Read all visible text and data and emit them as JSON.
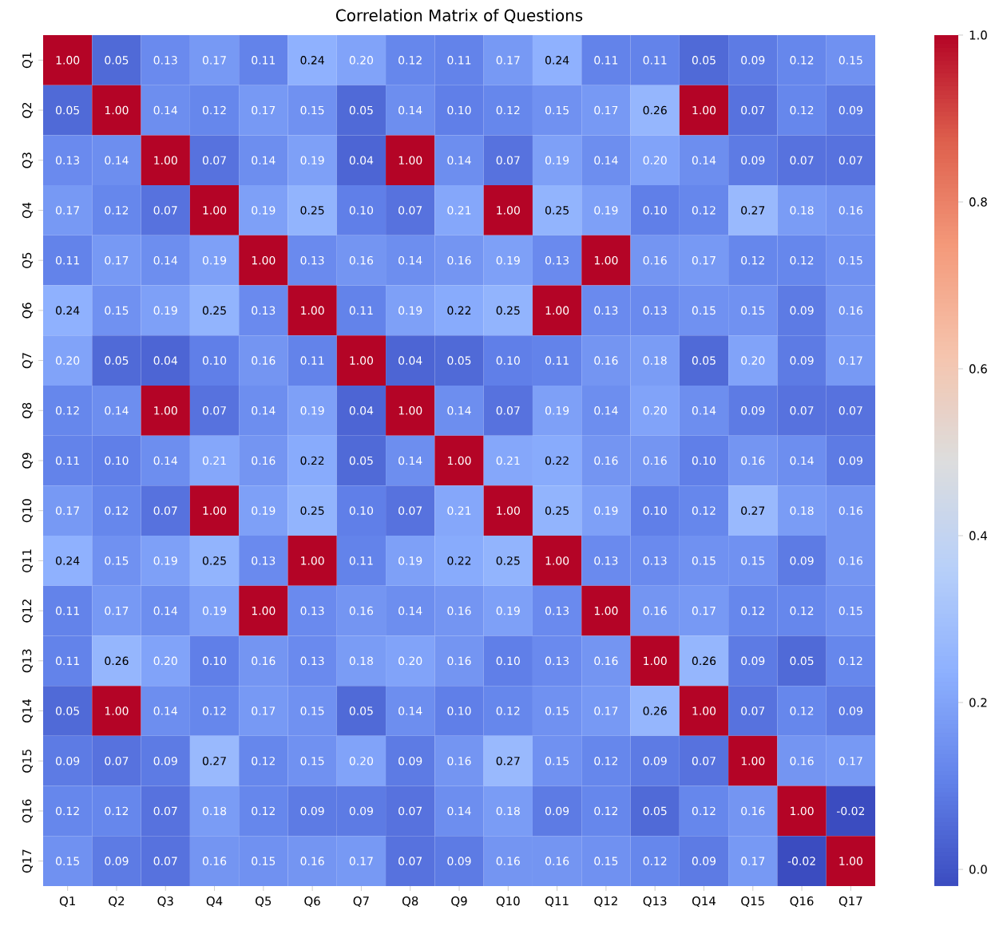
{
  "chart_data": {
    "type": "heatmap",
    "title": "Correlation Matrix of Questions",
    "categories": [
      "Q1",
      "Q2",
      "Q3",
      "Q4",
      "Q5",
      "Q6",
      "Q7",
      "Q8",
      "Q9",
      "Q10",
      "Q11",
      "Q12",
      "Q13",
      "Q14",
      "Q15",
      "Q16",
      "Q17"
    ],
    "y_categories": [
      "Q1",
      "Q2",
      "Q3",
      "Q4",
      "Q5",
      "Q6",
      "Q7",
      "Q8",
      "Q9",
      "Q10",
      "Q11",
      "Q12",
      "Q13",
      "Q14",
      "Q15",
      "Q16",
      "Q17"
    ],
    "cells": [
      [
        1.0,
        0.05,
        0.13,
        0.17,
        0.11,
        0.24,
        0.2,
        0.12,
        0.11,
        0.17,
        0.24,
        0.11,
        0.11,
        0.05,
        0.09,
        0.12,
        0.15
      ],
      [
        0.05,
        1.0,
        0.14,
        0.12,
        0.17,
        0.15,
        0.05,
        0.14,
        0.1,
        0.12,
        0.15,
        0.17,
        0.26,
        1.0,
        0.07,
        0.12,
        0.09
      ],
      [
        0.13,
        0.14,
        1.0,
        0.07,
        0.14,
        0.19,
        0.04,
        1.0,
        0.14,
        0.07,
        0.19,
        0.14,
        0.2,
        0.14,
        0.09,
        0.07,
        0.07
      ],
      [
        0.17,
        0.12,
        0.07,
        1.0,
        0.19,
        0.25,
        0.1,
        0.07,
        0.21,
        1.0,
        0.25,
        0.19,
        0.1,
        0.12,
        0.27,
        0.18,
        0.16
      ],
      [
        0.11,
        0.17,
        0.14,
        0.19,
        1.0,
        0.13,
        0.16,
        0.14,
        0.16,
        0.19,
        0.13,
        1.0,
        0.16,
        0.17,
        0.12,
        0.12,
        0.15
      ],
      [
        0.24,
        0.15,
        0.19,
        0.25,
        0.13,
        1.0,
        0.11,
        0.19,
        0.22,
        0.25,
        1.0,
        0.13,
        0.13,
        0.15,
        0.15,
        0.09,
        0.16
      ],
      [
        0.2,
        0.05,
        0.04,
        0.1,
        0.16,
        0.11,
        1.0,
        0.04,
        0.05,
        0.1,
        0.11,
        0.16,
        0.18,
        0.05,
        0.2,
        0.09,
        0.17
      ],
      [
        0.12,
        0.14,
        1.0,
        0.07,
        0.14,
        0.19,
        0.04,
        1.0,
        0.14,
        0.07,
        0.19,
        0.14,
        0.2,
        0.14,
        0.09,
        0.07,
        0.07
      ],
      [
        0.11,
        0.1,
        0.14,
        0.21,
        0.16,
        0.22,
        0.05,
        0.14,
        1.0,
        0.21,
        0.22,
        0.16,
        0.16,
        0.1,
        0.16,
        0.14,
        0.09
      ],
      [
        0.17,
        0.12,
        0.07,
        1.0,
        0.19,
        0.25,
        0.1,
        0.07,
        0.21,
        1.0,
        0.25,
        0.19,
        0.1,
        0.12,
        0.27,
        0.18,
        0.16
      ],
      [
        0.24,
        0.15,
        0.19,
        0.25,
        0.13,
        1.0,
        0.11,
        0.19,
        0.22,
        0.25,
        1.0,
        0.13,
        0.13,
        0.15,
        0.15,
        0.09,
        0.16
      ],
      [
        0.11,
        0.17,
        0.14,
        0.19,
        1.0,
        0.13,
        0.16,
        0.14,
        0.16,
        0.19,
        0.13,
        1.0,
        0.16,
        0.17,
        0.12,
        0.12,
        0.15
      ],
      [
        0.11,
        0.26,
        0.2,
        0.1,
        0.16,
        0.13,
        0.18,
        0.2,
        0.16,
        0.1,
        0.13,
        0.16,
        1.0,
        0.26,
        0.09,
        0.05,
        0.12
      ],
      [
        0.05,
        1.0,
        0.14,
        0.12,
        0.17,
        0.15,
        0.05,
        0.14,
        0.1,
        0.12,
        0.15,
        0.17,
        0.26,
        1.0,
        0.07,
        0.12,
        0.09
      ],
      [
        0.09,
        0.07,
        0.09,
        0.27,
        0.12,
        0.15,
        0.2,
        0.09,
        0.16,
        0.27,
        0.15,
        0.12,
        0.09,
        0.07,
        1.0,
        0.16,
        0.17
      ],
      [
        0.12,
        0.12,
        0.07,
        0.18,
        0.12,
        0.09,
        0.09,
        0.07,
        0.14,
        0.18,
        0.09,
        0.12,
        0.05,
        0.12,
        0.16,
        1.0,
        -0.02
      ],
      [
        0.15,
        0.09,
        0.07,
        0.16,
        0.15,
        0.16,
        0.17,
        0.07,
        0.09,
        0.16,
        0.16,
        0.15,
        0.12,
        0.09,
        0.17,
        -0.02,
        1.0
      ]
    ],
    "cell_labels": [
      [
        "1.00",
        "0.05",
        "0.13",
        "0.17",
        "0.11",
        "0.24",
        "0.20",
        "0.12",
        "0.11",
        "0.17",
        "0.24",
        "0.11",
        "0.11",
        "0.05",
        "0.09",
        "0.12",
        "0.15"
      ],
      [
        "0.05",
        "1.00",
        "0.14",
        "0.12",
        "0.17",
        "0.15",
        "0.05",
        "0.14",
        "0.10",
        "0.12",
        "0.15",
        "0.17",
        "0.26",
        "1.00",
        "0.07",
        "0.12",
        "0.09"
      ],
      [
        "0.13",
        "0.14",
        "1.00",
        "0.07",
        "0.14",
        "0.19",
        "0.04",
        "1.00",
        "0.14",
        "0.07",
        "0.19",
        "0.14",
        "0.20",
        "0.14",
        "0.09",
        "0.07",
        "0.07"
      ],
      [
        "0.17",
        "0.12",
        "0.07",
        "1.00",
        "0.19",
        "0.25",
        "0.10",
        "0.07",
        "0.21",
        "1.00",
        "0.25",
        "0.19",
        "0.10",
        "0.12",
        "0.27",
        "0.18",
        "0.16"
      ],
      [
        "0.11",
        "0.17",
        "0.14",
        "0.19",
        "1.00",
        "0.13",
        "0.16",
        "0.14",
        "0.16",
        "0.19",
        "0.13",
        "1.00",
        "0.16",
        "0.17",
        "0.12",
        "0.12",
        "0.15"
      ],
      [
        "0.24",
        "0.15",
        "0.19",
        "0.25",
        "0.13",
        "1.00",
        "0.11",
        "0.19",
        "0.22",
        "0.25",
        "1.00",
        "0.13",
        "0.13",
        "0.15",
        "0.15",
        "0.09",
        "0.16"
      ],
      [
        "0.20",
        "0.05",
        "0.04",
        "0.10",
        "0.16",
        "0.11",
        "1.00",
        "0.04",
        "0.05",
        "0.10",
        "0.11",
        "0.16",
        "0.18",
        "0.05",
        "0.20",
        "0.09",
        "0.17"
      ],
      [
        "0.12",
        "0.14",
        "1.00",
        "0.07",
        "0.14",
        "0.19",
        "0.04",
        "1.00",
        "0.14",
        "0.07",
        "0.19",
        "0.14",
        "0.20",
        "0.14",
        "0.09",
        "0.07",
        "0.07"
      ],
      [
        "0.11",
        "0.10",
        "0.14",
        "0.21",
        "0.16",
        "0.22",
        "0.05",
        "0.14",
        "1.00",
        "0.21",
        "0.22",
        "0.16",
        "0.16",
        "0.10",
        "0.16",
        "0.14",
        "0.09"
      ],
      [
        "0.17",
        "0.12",
        "0.07",
        "1.00",
        "0.19",
        "0.25",
        "0.10",
        "0.07",
        "0.21",
        "1.00",
        "0.25",
        "0.19",
        "0.10",
        "0.12",
        "0.27",
        "0.18",
        "0.16"
      ],
      [
        "0.24",
        "0.15",
        "0.19",
        "0.25",
        "0.13",
        "1.00",
        "0.11",
        "0.19",
        "0.22",
        "0.25",
        "1.00",
        "0.13",
        "0.13",
        "0.15",
        "0.15",
        "0.09",
        "0.16"
      ],
      [
        "0.11",
        "0.17",
        "0.14",
        "0.19",
        "1.00",
        "0.13",
        "0.16",
        "0.14",
        "0.16",
        "0.19",
        "0.13",
        "1.00",
        "0.16",
        "0.17",
        "0.12",
        "0.12",
        "0.15"
      ],
      [
        "0.11",
        "0.26",
        "0.20",
        "0.10",
        "0.16",
        "0.13",
        "0.18",
        "0.20",
        "0.16",
        "0.10",
        "0.13",
        "0.16",
        "1.00",
        "0.26",
        "0.09",
        "0.05",
        "0.12"
      ],
      [
        "0.05",
        "1.00",
        "0.14",
        "0.12",
        "0.17",
        "0.15",
        "0.05",
        "0.14",
        "0.10",
        "0.12",
        "0.15",
        "0.17",
        "0.26",
        "1.00",
        "0.07",
        "0.12",
        "0.09"
      ],
      [
        "0.09",
        "0.07",
        "0.09",
        "0.27",
        "0.12",
        "0.15",
        "0.20",
        "0.09",
        "0.16",
        "0.27",
        "0.15",
        "0.12",
        "0.09",
        "0.07",
        "1.00",
        "0.16",
        "0.17"
      ],
      [
        "0.12",
        "0.12",
        "0.07",
        "0.18",
        "0.12",
        "0.09",
        "0.09",
        "0.07",
        "0.14",
        "0.18",
        "0.09",
        "0.12",
        "0.05",
        "0.12",
        "0.16",
        "1.00",
        "-0.02"
      ],
      [
        "0.15",
        "0.09",
        "0.07",
        "0.16",
        "0.15",
        "0.16",
        "0.17",
        "0.07",
        "0.09",
        "0.16",
        "0.16",
        "0.15",
        "0.12",
        "0.09",
        "0.17",
        "-0.02",
        "1.00"
      ]
    ],
    "clim": [
      -0.02,
      1.0
    ],
    "cticks": [
      {
        "value": 0,
        "label": "0.0"
      },
      {
        "value": 0.2,
        "label": "0.2"
      },
      {
        "value": 0.4,
        "label": "0.4"
      },
      {
        "value": 0.6,
        "label": "0.6"
      },
      {
        "value": 0.8,
        "label": "0.8"
      },
      {
        "value": 1.0,
        "label": "1.0"
      }
    ]
  }
}
